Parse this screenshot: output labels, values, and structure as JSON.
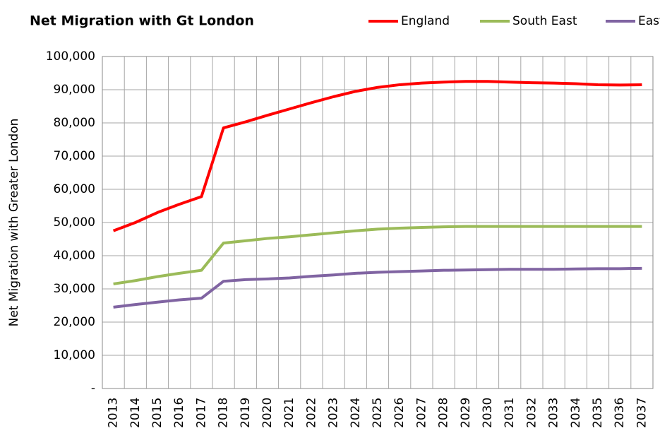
{
  "chart_data": {
    "type": "line",
    "title": "Net Migration with Gt London",
    "y_label": "Net Migration with Greater London",
    "categories": [
      "2013",
      "2014",
      "2015",
      "2016",
      "2017",
      "2018",
      "2019",
      "2020",
      "2021",
      "2022",
      "2023",
      "2024",
      "2025",
      "2026",
      "2027",
      "2028",
      "2029",
      "2030",
      "2031",
      "2032",
      "2033",
      "2034",
      "2035",
      "2036",
      "2037"
    ],
    "series": [
      {
        "name": "England",
        "color": "#ff0000",
        "values": [
          47500,
          50000,
          53000,
          55500,
          57800,
          78500,
          80300,
          82300,
          84200,
          86100,
          87900,
          89500,
          90700,
          91500,
          92000,
          92300,
          92500,
          92500,
          92300,
          92100,
          92000,
          91800,
          91500,
          91400,
          91500
        ]
      },
      {
        "name": "South East",
        "color": "#9bbb59",
        "values": [
          31500,
          32500,
          33700,
          34700,
          35600,
          43800,
          44500,
          45200,
          45700,
          46300,
          46900,
          47500,
          48000,
          48300,
          48500,
          48700,
          48800,
          48800,
          48800,
          48800,
          48800,
          48800,
          48800,
          48800,
          48800
        ]
      },
      {
        "name": "East",
        "color": "#8064a2",
        "values": [
          24500,
          25300,
          26000,
          26700,
          27200,
          32300,
          32800,
          33000,
          33300,
          33800,
          34200,
          34700,
          35000,
          35200,
          35400,
          35600,
          35700,
          35800,
          35900,
          35900,
          35900,
          36000,
          36100,
          36100,
          36200
        ]
      }
    ],
    "ylim": [
      0,
      100000
    ],
    "yticks": [
      {
        "value": 0,
        "label": "-"
      },
      {
        "value": 10000,
        "label": "10,000"
      },
      {
        "value": 20000,
        "label": "20,000"
      },
      {
        "value": 30000,
        "label": "30,000"
      },
      {
        "value": 40000,
        "label": "40,000"
      },
      {
        "value": 50000,
        "label": "50,000"
      },
      {
        "value": 60000,
        "label": "60,000"
      },
      {
        "value": 70000,
        "label": "70,000"
      },
      {
        "value": 80000,
        "label": "80,000"
      },
      {
        "value": 90000,
        "label": "90,000"
      },
      {
        "value": 100000,
        "label": "100,000"
      }
    ],
    "grid": true
  }
}
